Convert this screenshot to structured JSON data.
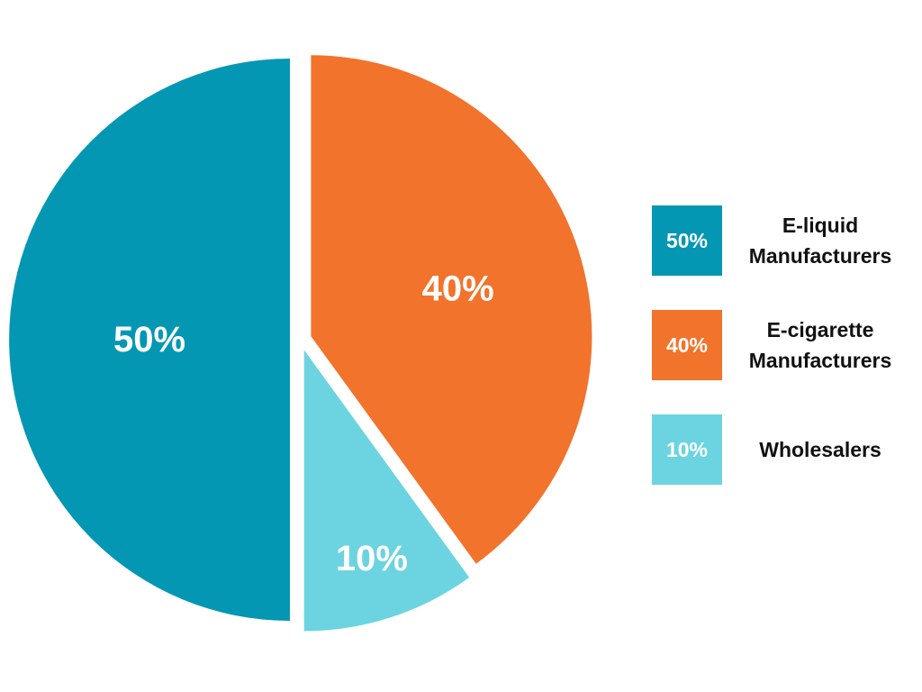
{
  "chart_data": {
    "type": "pie",
    "slices": [
      {
        "label": "E-liquid\nManufacturers",
        "value": 50,
        "display": "50%",
        "color": "#0497b3"
      },
      {
        "label": "E-cigarette\nManufacturers",
        "value": 40,
        "display": "40%",
        "color": "#f2732b"
      },
      {
        "label": "Wholesalers",
        "value": 10,
        "display": "10%",
        "color": "#6bd4e0"
      }
    ],
    "legend_position": "right",
    "exploded": true
  },
  "legend": {
    "items": [
      {
        "value": "50%",
        "label": "E-liquid\nManufacturers",
        "color": "#0497b3"
      },
      {
        "value": "40%",
        "label": "E-cigarette\nManufacturers",
        "color": "#f2732b"
      },
      {
        "value": "10%",
        "label": "Wholesalers",
        "color": "#6bd4e0"
      }
    ]
  }
}
